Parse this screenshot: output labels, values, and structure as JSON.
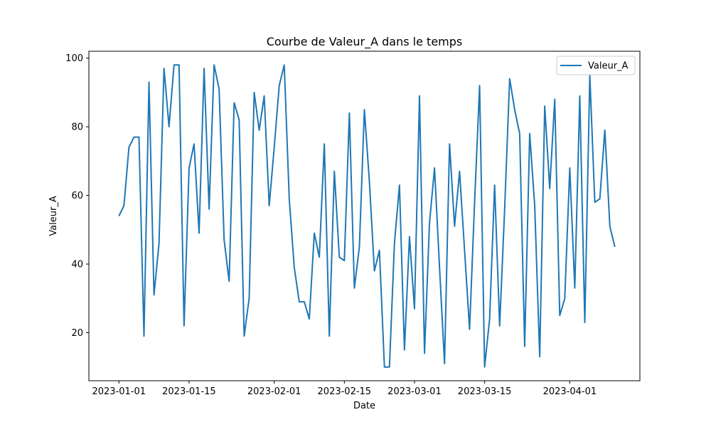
{
  "chart_data": {
    "type": "line",
    "title": "Courbe de Valeur_A dans le temps",
    "xlabel": "Date",
    "ylabel": "Valeur_A",
    "x_start": "2023-01-01",
    "x_ticks": [
      "2023-01-01",
      "2023-01-15",
      "2023-02-01",
      "2023-02-15",
      "2023-03-01",
      "2023-03-15",
      "2023-04-01"
    ],
    "y_ticks": [
      20,
      40,
      60,
      80,
      100
    ],
    "xlim": [
      "2022-12-26",
      "2023-04-15"
    ],
    "ylim": [
      6,
      102
    ],
    "grid": false,
    "legend_position": "top-right",
    "series": [
      {
        "name": "Valeur_A",
        "color": "#1f77b4",
        "values": [
          54,
          57,
          74,
          77,
          77,
          19,
          93,
          31,
          46,
          97,
          80,
          98,
          98,
          22,
          68,
          75,
          49,
          97,
          56,
          98,
          91,
          47,
          35,
          87,
          82,
          19,
          30,
          90,
          79,
          89,
          57,
          74,
          92,
          98,
          59,
          39,
          29,
          29,
          24,
          49,
          42,
          75,
          19,
          67,
          42,
          41,
          84,
          33,
          45,
          85,
          64,
          38,
          44,
          10,
          10,
          46,
          63,
          15,
          48,
          27,
          89,
          14,
          52,
          68,
          39,
          11,
          75,
          51,
          67,
          44,
          21,
          58,
          92,
          10,
          24,
          63,
          22,
          56,
          94,
          85,
          78,
          16,
          78,
          57,
          13,
          86,
          62,
          88,
          25,
          30,
          68,
          33,
          89,
          23,
          95,
          58,
          59,
          79,
          51,
          45
        ]
      }
    ]
  }
}
